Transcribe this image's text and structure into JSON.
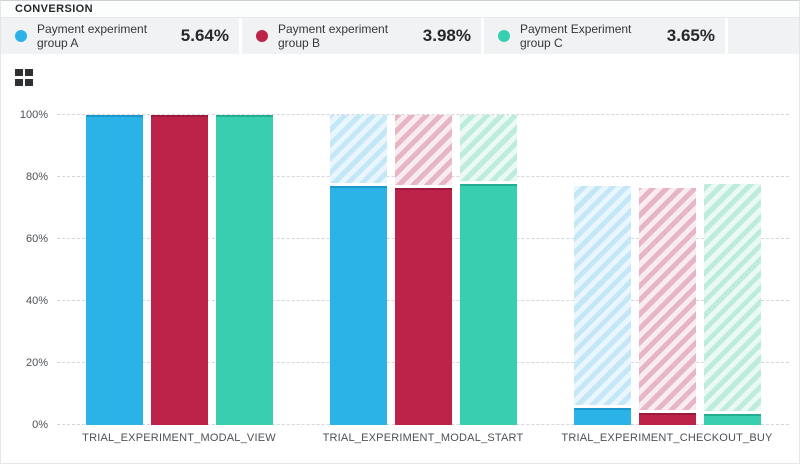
{
  "panel": {
    "title": "CONVERSION"
  },
  "legend": {
    "items": [
      {
        "label": "Payment experiment group A",
        "value": "5.64%",
        "color": "#2bb3e8"
      },
      {
        "label": "Payment experiment group B",
        "value": "3.98%",
        "color": "#bd2349"
      },
      {
        "label": "Payment Experiment group C",
        "value": "3.65%",
        "color": "#38cfb0"
      }
    ]
  },
  "toolbar": {
    "view_toggle": "grid-icon"
  },
  "chart_data": {
    "type": "bar",
    "variant": "funnel-with-hatched-carryover",
    "title": "CONVERSION",
    "categories": [
      "TRIAL_EXPERIMENT_MODAL_VIEW",
      "TRIAL_EXPERIMENT_MODAL_START",
      "TRIAL_EXPERIMENT_CHECKOUT_BUY"
    ],
    "series": [
      {
        "name": "Payment experiment group A",
        "values": [
          100,
          77.1,
          5.64
        ],
        "color": "#2bb3e8",
        "color_dark": "#1a97cc",
        "hatch_light": "#e9f6fd",
        "hatch_mid": "#c4e7f8"
      },
      {
        "name": "Payment experiment group B",
        "values": [
          100,
          76.6,
          3.98
        ],
        "color": "#bd2349",
        "color_dark": "#9c1b3c",
        "hatch_light": "#f9ecf0",
        "hatch_mid": "#e7b6c5"
      },
      {
        "name": "Payment Experiment group C",
        "values": [
          100,
          77.7,
          3.65
        ],
        "color": "#38cfb0",
        "color_dark": "#23ae93",
        "hatch_light": "#eaf9f4",
        "hatch_mid": "#bdecdf"
      }
    ],
    "hatch_meaning": "previous stage total carried over",
    "y_tick_values": [
      0,
      20,
      40,
      60,
      80,
      100
    ],
    "y_tick_labels": [
      "0%",
      "20%",
      "40%",
      "60%",
      "80%",
      "100%"
    ],
    "ylim": [
      0,
      100
    ],
    "grid": "dashed-horizontal",
    "legend_position": "top"
  }
}
